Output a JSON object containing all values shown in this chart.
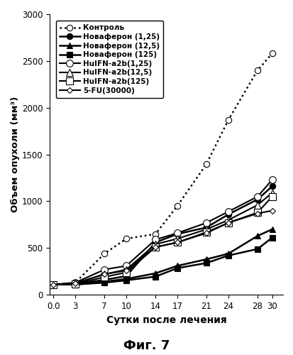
{
  "x": [
    0.0,
    3,
    7,
    10,
    14,
    17,
    21,
    24,
    28,
    30
  ],
  "series": [
    {
      "label": "Контроль",
      "y": [
        110,
        130,
        440,
        600,
        650,
        950,
        1400,
        1870,
        2400,
        2580
      ],
      "color": "black",
      "linestyle": "dotted",
      "marker": "o",
      "markerfacecolor": "white",
      "linewidth": 1.8,
      "markersize": 6
    },
    {
      "label": "Новаферон (1,25)",
      "y": [
        110,
        115,
        160,
        200,
        560,
        650,
        720,
        860,
        1020,
        1160
      ],
      "color": "black",
      "linestyle": "solid",
      "marker": "o",
      "markerfacecolor": "black",
      "linewidth": 1.8,
      "markersize": 6
    },
    {
      "label": "Новаферон (12,5)",
      "y": [
        110,
        110,
        140,
        170,
        230,
        310,
        380,
        440,
        630,
        700
      ],
      "color": "black",
      "linestyle": "solid",
      "marker": "^",
      "markerfacecolor": "black",
      "linewidth": 1.8,
      "markersize": 6
    },
    {
      "label": "Новаферон (125)",
      "y": [
        110,
        110,
        130,
        155,
        195,
        285,
        340,
        420,
        490,
        610
      ],
      "color": "black",
      "linestyle": "solid",
      "marker": "s",
      "markerfacecolor": "black",
      "linewidth": 1.8,
      "markersize": 6
    },
    {
      "label": "HuIFN-a2b(1,25)",
      "y": [
        110,
        130,
        270,
        310,
        590,
        660,
        770,
        890,
        1050,
        1230
      ],
      "color": "black",
      "linestyle": "solid",
      "marker": "o",
      "markerfacecolor": "white",
      "linewidth": 1.5,
      "markersize": 7
    },
    {
      "label": "HuIFN-a2b(12,5)",
      "y": [
        110,
        120,
        220,
        270,
        540,
        600,
        700,
        800,
        960,
        1090
      ],
      "color": "black",
      "linestyle": "solid",
      "marker": "^",
      "markerfacecolor": "white",
      "linewidth": 1.5,
      "markersize": 7
    },
    {
      "label": "HuIFN-a2b(125)",
      "y": [
        110,
        115,
        190,
        240,
        510,
        560,
        670,
        770,
        880,
        1050
      ],
      "color": "black",
      "linestyle": "solid",
      "marker": "s",
      "markerfacecolor": "white",
      "linewidth": 1.5,
      "markersize": 7
    },
    {
      "label": "5-FU(30000)",
      "y": [
        110,
        125,
        220,
        260,
        510,
        560,
        660,
        770,
        870,
        900
      ],
      "color": "black",
      "linestyle": "solid",
      "marker": "o",
      "markerfacecolor": "white",
      "linewidth": 1.5,
      "markersize": 5,
      "is_5fu": true
    }
  ],
  "xlabel": "Сутки после лечения",
  "ylabel": "Объем опухоли (мм³)",
  "title": "Фиг. 7",
  "ylim": [
    0,
    3000
  ],
  "yticks": [
    0,
    500,
    1000,
    1500,
    2000,
    2500,
    3000
  ],
  "xticks": [
    0.0,
    3,
    7,
    10,
    14,
    17,
    21,
    24,
    28,
    30
  ],
  "xlim": [
    -0.5,
    31.5
  ],
  "background_color": "white"
}
